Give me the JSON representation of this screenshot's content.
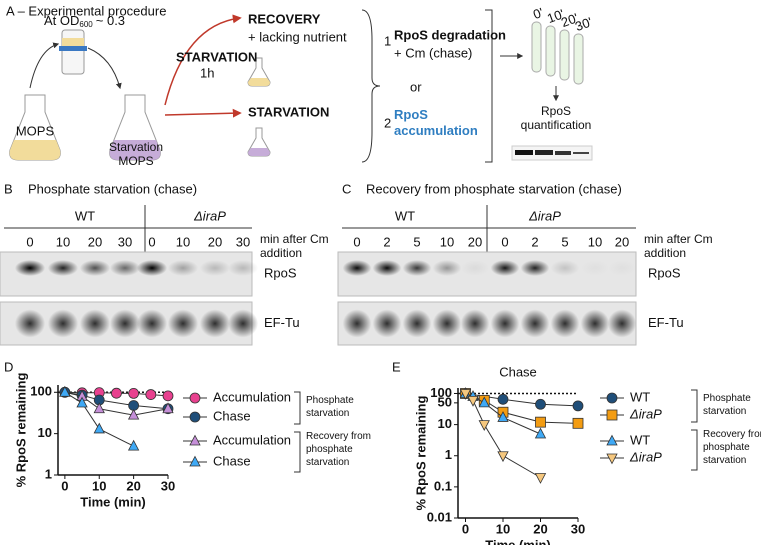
{
  "panel_a": {
    "title": "A – Experimental procedure",
    "od_prefix": "At OD",
    "od_subscript": "600",
    "od_suffix": "~ 0.3",
    "mops": "MOPS",
    "starvation_mops": "Starvation MOPS",
    "starvation_arrow": "STARVATION",
    "duration": "1h",
    "recovery": "RECOVERY",
    "recovery_note": "+ lacking nutrient",
    "starvation_branch": "STARVATION",
    "option_1": "1",
    "option_1_title": "RpoS degradation",
    "option_1_note": "+ Cm (chase)",
    "or": "or",
    "option_2": "2",
    "option_2_title": "RpoS accumulation",
    "timepoints": [
      "0'",
      "10'",
      "20'",
      "30'"
    ],
    "quantification": "RpoS quantification"
  },
  "panel_b": {
    "letter": "B",
    "title": "Phosphate starvation (chase)",
    "groups": [
      "WT",
      "ΔiraP"
    ],
    "lanes": [
      "0",
      "10",
      "20",
      "30",
      "0",
      "10",
      "20",
      "30"
    ],
    "lane_unit": "min after Cm addition",
    "bands": [
      "RpoS",
      "EF-Tu"
    ]
  },
  "panel_c": {
    "letter": "C",
    "title": "Recovery from phosphate starvation (chase)",
    "groups": [
      "WT",
      "ΔiraP"
    ],
    "lanes": [
      "0",
      "2",
      "5",
      "10",
      "20",
      "0",
      "2",
      "5",
      "10",
      "20"
    ],
    "lane_unit": "min after Cm addition",
    "bands": [
      "RpoS",
      "EF-Tu"
    ]
  },
  "chart_data": [
    {
      "type": "line",
      "panel": "D",
      "xlabel": "Time (min)",
      "ylabel": "% RpoS remaining",
      "xlim": [
        -2,
        30
      ],
      "xticks": [
        0,
        10,
        20,
        30
      ],
      "ylim": [
        1,
        150
      ],
      "yticks": [
        1,
        10,
        100
      ],
      "log_y": true,
      "reference_line": 100,
      "legend_groups": [
        "Phosphate starvation",
        "Recovery from phosphate starvation"
      ],
      "series": [
        {
          "name": "Accumulation",
          "color": "#e8418f",
          "marker": "circle",
          "x": [
            0,
            5,
            10,
            15,
            20,
            25,
            30
          ],
          "values": [
            100,
            97,
            98,
            95,
            94,
            88,
            82
          ]
        },
        {
          "name": "Chase",
          "color": "#1f4e79",
          "marker": "circle",
          "x": [
            0,
            5,
            10,
            20,
            30
          ],
          "values": [
            100,
            85,
            65,
            48,
            40
          ]
        },
        {
          "name": "Accumulation",
          "color": "#c58fd8",
          "marker": "triangle",
          "x": [
            0,
            5,
            10,
            20,
            30
          ],
          "values": [
            100,
            80,
            40,
            28,
            40
          ]
        },
        {
          "name": "Chase",
          "color": "#3fa9f5",
          "marker": "triangle",
          "x": [
            0,
            5,
            10,
            20
          ],
          "values": [
            100,
            55,
            13,
            5
          ]
        }
      ]
    },
    {
      "type": "line",
      "panel": "E",
      "title": "Chase",
      "xlabel": "Time (min)",
      "ylabel": "% RpoS remaining",
      "xlim": [
        -2,
        30
      ],
      "xticks": [
        0,
        10,
        20,
        30
      ],
      "ylim": [
        0.01,
        150
      ],
      "yticks": [
        0.01,
        0.1,
        1,
        10,
        50,
        100
      ],
      "log_y": true,
      "reference_line": 100,
      "legend_groups": [
        "Phosphate starvation",
        "Recovery from phosphate starvation"
      ],
      "series": [
        {
          "name": "WT",
          "color": "#1f4e79",
          "marker": "circle",
          "x": [
            0,
            10,
            20,
            30
          ],
          "values": [
            100,
            65,
            45,
            40
          ]
        },
        {
          "name": "ΔiraP",
          "color": "#f39c12",
          "marker": "square",
          "x": [
            0,
            5,
            10,
            20,
            30
          ],
          "values": [
            100,
            60,
            25,
            12,
            11
          ]
        },
        {
          "name": "WT",
          "color": "#3fa9f5",
          "marker": "triangle",
          "x": [
            0,
            2,
            5,
            10,
            20
          ],
          "values": [
            100,
            80,
            50,
            17,
            5
          ]
        },
        {
          "name": "ΔiraP",
          "color": "#f5c77e",
          "marker": "triangle-down",
          "x": [
            0,
            2,
            5,
            10,
            20
          ],
          "values": [
            100,
            60,
            10,
            1,
            0.2
          ]
        }
      ]
    }
  ]
}
